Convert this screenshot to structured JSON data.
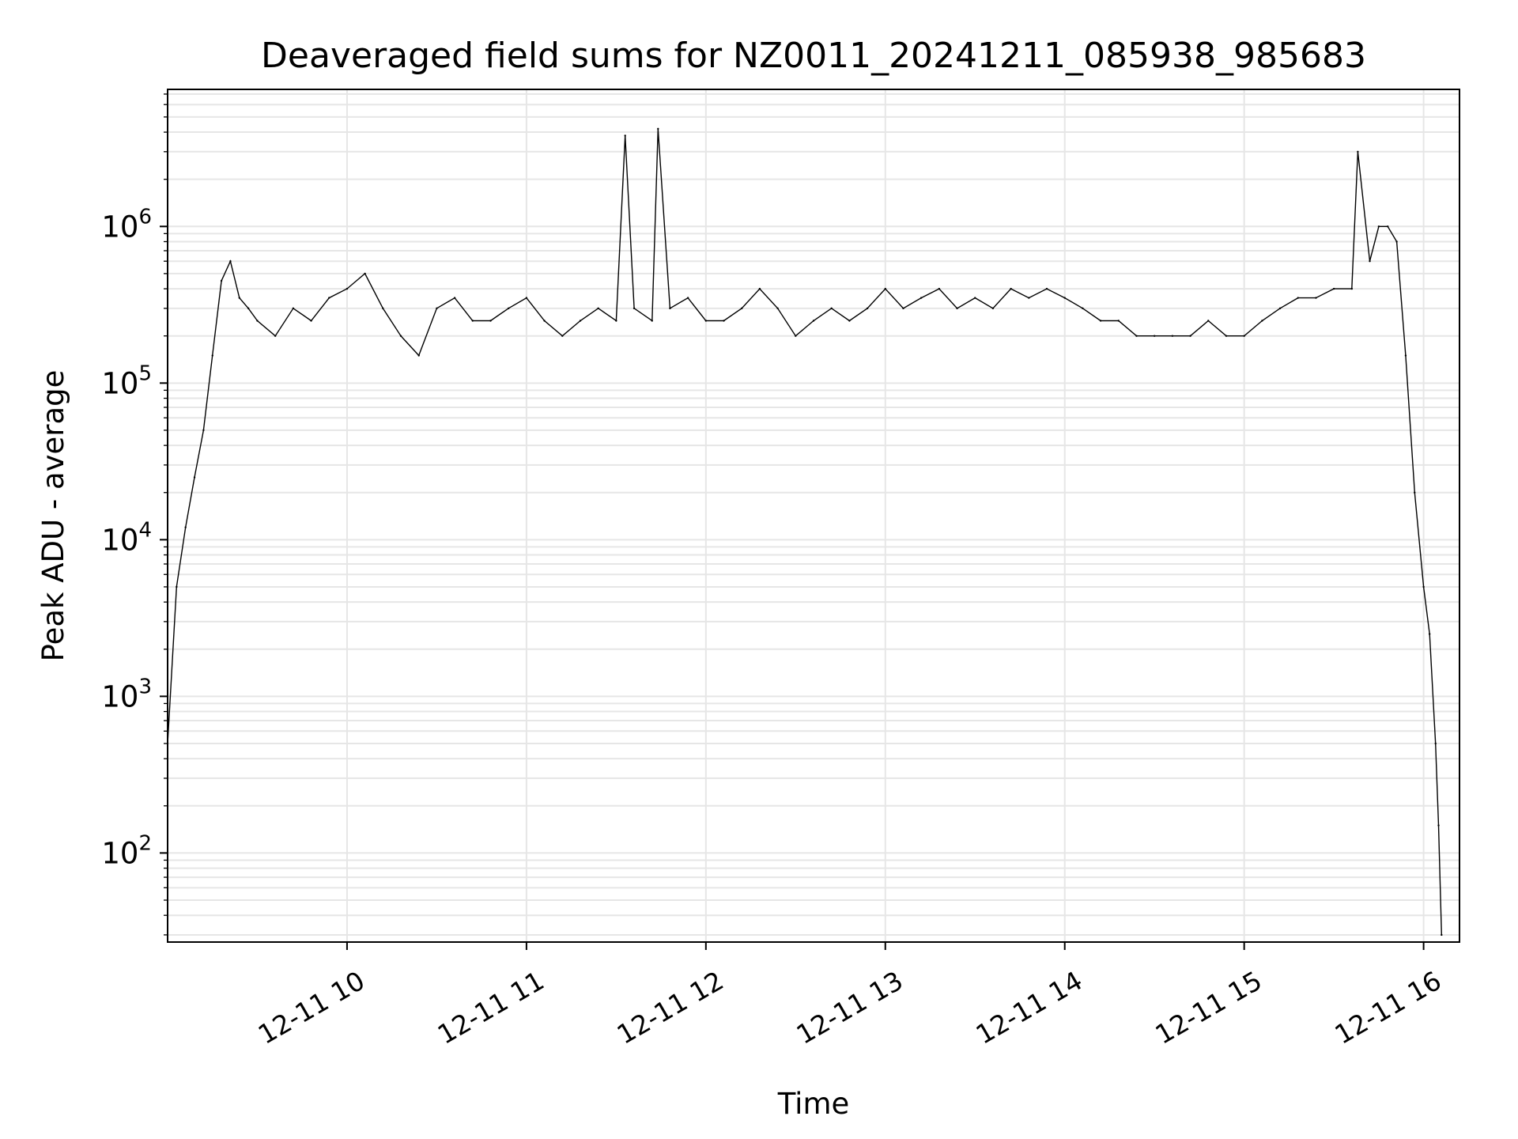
{
  "chart_data": {
    "type": "line",
    "title": "Deaveraged field sums for NZ0011_20241211_085938_985683",
    "xlabel": "Time",
    "ylabel": "Peak ADU - average",
    "x_axis": {
      "kind": "time",
      "range": [
        "2024-12-11 09:00",
        "2024-12-11 16:12"
      ],
      "tick_labels": [
        "12-11 10",
        "12-11 11",
        "12-11 12",
        "12-11 13",
        "12-11 14",
        "12-11 15",
        "12-11 16"
      ],
      "tick_rotation": "30 degrees"
    },
    "y_axis": {
      "scale": "log",
      "range": [
        27,
        7500000
      ],
      "tick_labels": [
        {
          "base": "10",
          "exp": "2"
        },
        {
          "base": "10",
          "exp": "3"
        },
        {
          "base": "10",
          "exp": "4"
        },
        {
          "base": "10",
          "exp": "5"
        },
        {
          "base": "10",
          "exp": "6"
        }
      ]
    },
    "grid": true,
    "line_color": "#000000",
    "grid_color": "#e6e6e6",
    "series": [
      {
        "x": [
          "2024-12-11 09:00",
          "2024-12-11 09:03",
          "2024-12-11 09:06",
          "2024-12-11 09:09",
          "2024-12-11 09:12",
          "2024-12-11 09:15",
          "2024-12-11 09:18",
          "2024-12-11 09:21",
          "2024-12-11 09:24",
          "2024-12-11 09:27",
          "2024-12-11 09:30",
          "2024-12-11 09:36",
          "2024-12-11 09:42",
          "2024-12-11 09:48",
          "2024-12-11 09:54",
          "2024-12-11 10:00",
          "2024-12-11 10:06",
          "2024-12-11 10:12",
          "2024-12-11 10:18",
          "2024-12-11 10:24",
          "2024-12-11 10:30",
          "2024-12-11 10:36",
          "2024-12-11 10:42",
          "2024-12-11 10:48",
          "2024-12-11 10:54",
          "2024-12-11 11:00",
          "2024-12-11 11:06",
          "2024-12-11 11:12",
          "2024-12-11 11:18",
          "2024-12-11 11:24",
          "2024-12-11 11:30",
          "2024-12-11 11:33",
          "2024-12-11 11:36",
          "2024-12-11 11:42",
          "2024-12-11 11:44",
          "2024-12-11 11:48",
          "2024-12-11 11:54",
          "2024-12-11 12:00",
          "2024-12-11 12:06",
          "2024-12-11 12:12",
          "2024-12-11 12:18",
          "2024-12-11 12:24",
          "2024-12-11 12:30",
          "2024-12-11 12:36",
          "2024-12-11 12:42",
          "2024-12-11 12:48",
          "2024-12-11 12:54",
          "2024-12-11 13:00",
          "2024-12-11 13:06",
          "2024-12-11 13:12",
          "2024-12-11 13:18",
          "2024-12-11 13:24",
          "2024-12-11 13:30",
          "2024-12-11 13:36",
          "2024-12-11 13:42",
          "2024-12-11 13:48",
          "2024-12-11 13:54",
          "2024-12-11 14:00",
          "2024-12-11 14:06",
          "2024-12-11 14:12",
          "2024-12-11 14:18",
          "2024-12-11 14:24",
          "2024-12-11 14:30",
          "2024-12-11 14:36",
          "2024-12-11 14:42",
          "2024-12-11 14:48",
          "2024-12-11 14:54",
          "2024-12-11 15:00",
          "2024-12-11 15:06",
          "2024-12-11 15:12",
          "2024-12-11 15:18",
          "2024-12-11 15:24",
          "2024-12-11 15:30",
          "2024-12-11 15:36",
          "2024-12-11 15:38",
          "2024-12-11 15:42",
          "2024-12-11 15:45",
          "2024-12-11 15:48",
          "2024-12-11 15:51",
          "2024-12-11 15:54",
          "2024-12-11 15:57",
          "2024-12-11 16:00",
          "2024-12-11 16:02",
          "2024-12-11 16:04",
          "2024-12-11 16:05",
          "2024-12-11 16:06"
        ],
        "values": [
          500,
          5000,
          12000,
          25000,
          50000,
          150000,
          450000,
          600000,
          350000,
          300000,
          250000,
          200000,
          300000,
          250000,
          350000,
          400000,
          500000,
          300000,
          200000,
          150000,
          300000,
          350000,
          250000,
          250000,
          300000,
          350000,
          250000,
          200000,
          250000,
          300000,
          250000,
          3800000,
          300000,
          250000,
          4200000,
          300000,
          350000,
          250000,
          250000,
          300000,
          400000,
          300000,
          200000,
          250000,
          300000,
          250000,
          300000,
          400000,
          300000,
          350000,
          400000,
          300000,
          350000,
          300000,
          400000,
          350000,
          400000,
          350000,
          300000,
          250000,
          250000,
          200000,
          200000,
          200000,
          200000,
          250000,
          200000,
          200000,
          250000,
          300000,
          350000,
          350000,
          400000,
          400000,
          3000000,
          600000,
          1000000,
          1000000,
          800000,
          150000,
          20000,
          5000,
          2500,
          500,
          150,
          30
        ]
      }
    ]
  }
}
